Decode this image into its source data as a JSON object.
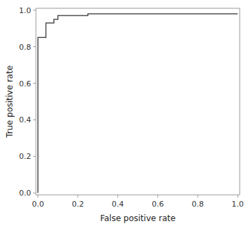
{
  "chart_data": {
    "type": "line",
    "x": [
      0.0,
      0.0,
      0.04,
      0.04,
      0.08,
      0.08,
      0.1,
      0.1,
      0.25,
      0.25,
      1.0
    ],
    "values": [
      0.0,
      0.85,
      0.85,
      0.93,
      0.93,
      0.95,
      0.95,
      0.97,
      0.97,
      0.98,
      0.98
    ],
    "color": "#4d4d4d",
    "xlabel": "False positive rate",
    "ylabel": "True positive rate",
    "xlim": [
      -0.01,
      1.01
    ],
    "ylim": [
      -0.01,
      1.01
    ],
    "xticks": [
      {
        "value": 0,
        "label": "0.0"
      },
      0.2,
      0.4,
      0.6,
      0.8,
      {
        "value": 1,
        "label": "1.0"
      }
    ],
    "yticks": [
      {
        "value": 0,
        "label": "0.0"
      },
      0.2,
      0.4,
      0.6,
      0.8,
      {
        "value": 1,
        "label": "1.0"
      }
    ]
  }
}
